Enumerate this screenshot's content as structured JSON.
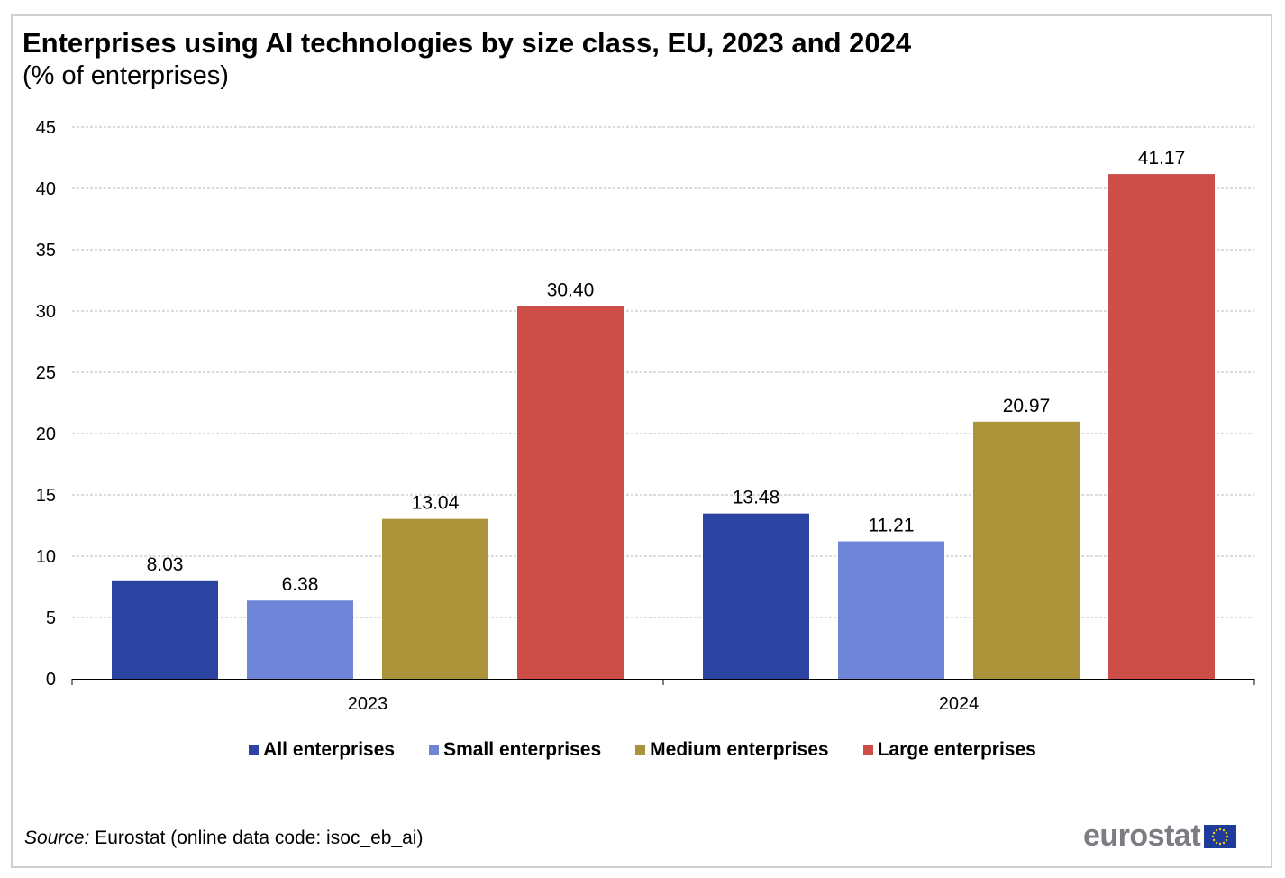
{
  "chart_data": {
    "type": "bar",
    "title": "Enterprises using AI technologies by size class, EU, 2023 and 2024",
    "subtitle": "(% of enterprises)",
    "categories": [
      "2023",
      "2024"
    ],
    "series": [
      {
        "name": "All enterprises",
        "color": "#2c44a1",
        "values": [
          8.03,
          13.48
        ],
        "labels": [
          "8.03",
          "13.48"
        ]
      },
      {
        "name": "Small enterprises",
        "color": "#6e84d7",
        "values": [
          6.38,
          11.21
        ],
        "labels": [
          "6.38",
          "11.21"
        ]
      },
      {
        "name": "Medium enterprises",
        "color": "#ab9339",
        "values": [
          13.04,
          20.97
        ],
        "labels": [
          "13.04",
          "20.97"
        ]
      },
      {
        "name": "Large enterprises",
        "color": "#cd4e48",
        "values": [
          30.4,
          41.17
        ],
        "labels": [
          "30.40",
          "41.17"
        ]
      }
    ],
    "yticks": [
      "0",
      "5",
      "10",
      "15",
      "20",
      "25",
      "30",
      "35",
      "40",
      "45"
    ],
    "ylim": [
      0,
      45
    ],
    "grid": true,
    "legend_position": "bottom"
  },
  "source": {
    "label": "Source:",
    "text": " Eurostat (online data code: isoc_eb_ai)"
  },
  "logo": {
    "text": "eurostat"
  }
}
